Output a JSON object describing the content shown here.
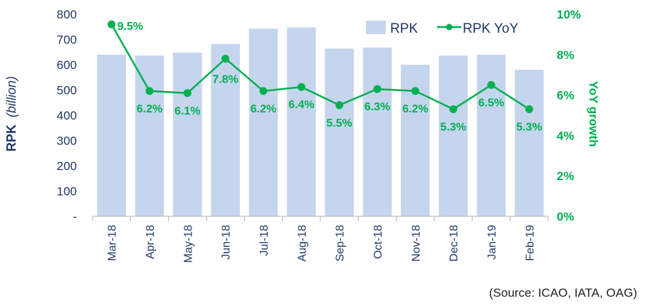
{
  "chart_data": {
    "type": "bar",
    "categories": [
      "Mar-18",
      "Apr-18",
      "May-18",
      "Jun-18",
      "Jul-18",
      "Aug-18",
      "Sep-18",
      "Oct-18",
      "Nov-18",
      "Dec-18",
      "Jan-19",
      "Feb-19"
    ],
    "series": [
      {
        "name": "RPK",
        "type": "bar",
        "axis": "left",
        "color": "#c5d5ee",
        "values": [
          640,
          636,
          648,
          682,
          743,
          748,
          664,
          668,
          600,
          636,
          640,
          580
        ]
      },
      {
        "name": "RPK YoY",
        "type": "line",
        "axis": "right",
        "color": "#00b050",
        "values": [
          9.5,
          6.2,
          6.1,
          7.8,
          6.2,
          6.4,
          5.5,
          6.3,
          6.2,
          5.3,
          6.5,
          5.3
        ],
        "labels": [
          "9.5%",
          "6.2%",
          "6.1%",
          "7.8%",
          "6.2%",
          "6.4%",
          "5.5%",
          "6.3%",
          "6.2%",
          "5.3%",
          "6.5%",
          "5.3%"
        ]
      }
    ],
    "y_left": {
      "label_main": "RPK",
      "label_italic": "(billion)",
      "ylim": [
        0,
        800
      ],
      "ticks": [
        0,
        100,
        200,
        300,
        400,
        500,
        600,
        700,
        800
      ],
      "tick_labels": [
        "-",
        "100",
        "200",
        "300",
        "400",
        "500",
        "600",
        "700",
        "800"
      ]
    },
    "y_right": {
      "label": "YoY growth",
      "ylim": [
        0,
        10
      ],
      "ticks": [
        0,
        2,
        4,
        6,
        8,
        10
      ],
      "tick_labels": [
        "0%",
        "2%",
        "4%",
        "6%",
        "8%",
        "10%"
      ]
    },
    "legend": {
      "position": "top-right",
      "entries": [
        "RPK",
        "RPK YoY"
      ]
    },
    "source_note": "(Source: ICAO, IATA, OAG)"
  }
}
